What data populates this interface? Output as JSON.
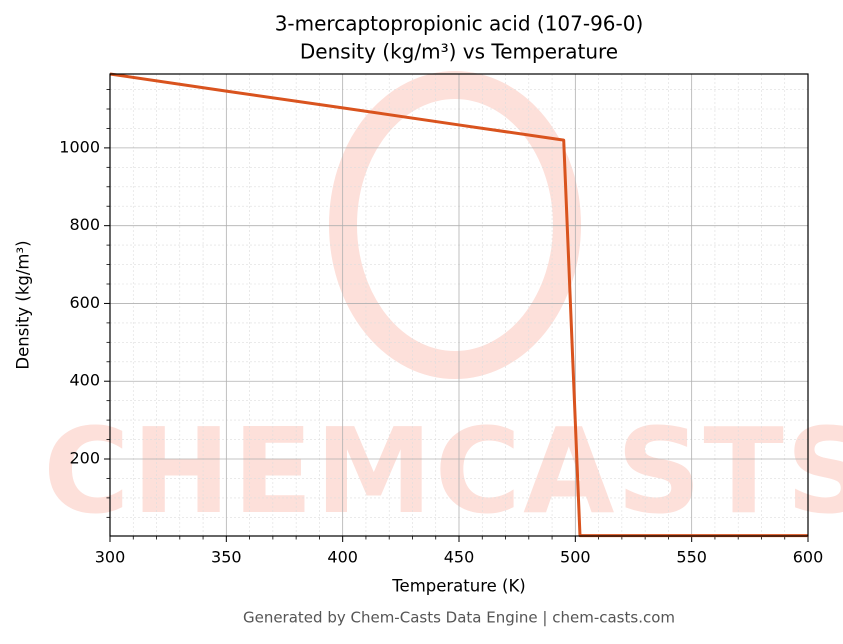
{
  "chart_data": {
    "type": "line",
    "title": "3-mercaptopropionic acid (107-96-0)",
    "subtitle": "Density (kg/m³) vs Temperature",
    "x_label": "Temperature (K)",
    "y_label": "Density (kg/m³)",
    "footer": "Generated by Chem-Casts Data Engine | chem-casts.com",
    "watermark": "CHEMCASTS",
    "x": [
      300,
      350,
      400,
      450,
      495,
      502,
      550,
      600
    ],
    "series": [
      {
        "name": "Density",
        "color": "#d9531e",
        "values": [
          1190,
          1146,
          1103,
          1059,
          1020,
          3,
          3,
          3
        ]
      }
    ],
    "xlim": [
      300,
      600
    ],
    "xticks": [
      300,
      350,
      400,
      450,
      500,
      550,
      600
    ],
    "ylim": [
      2,
      1190
    ],
    "yticks": [
      200,
      400,
      600,
      800,
      1000
    ],
    "grid": true,
    "minor_grid": true
  }
}
